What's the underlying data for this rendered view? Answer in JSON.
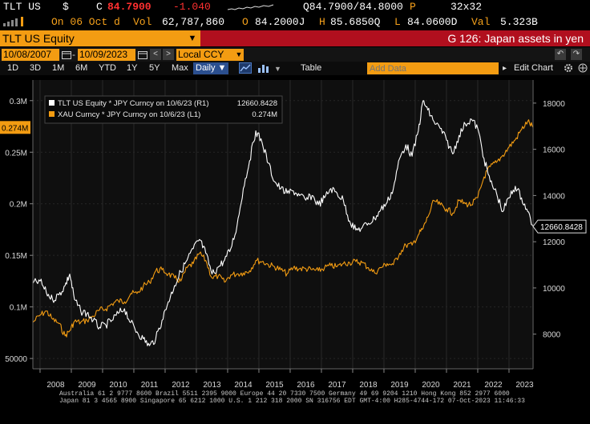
{
  "quote": {
    "ticker": "TLT US",
    "currency_symbol": "$",
    "last_prefix": "C",
    "last": "84.7900",
    "change": "-1.040",
    "bid_ask": "Q84.7900/84.8000",
    "bid_ask_suffix": "P",
    "size": "32x32",
    "date_label": "On 06 Oct d",
    "volume_label": "Vol",
    "volume": "62,787,860",
    "open_label": "O",
    "open": "84.2000J",
    "high_label": "H",
    "high": "85.6850Q",
    "low_label": "L",
    "low": "84.0600D",
    "value_label": "Val",
    "value": "5.323B"
  },
  "security": {
    "name": "TLT US Equity",
    "function_title": "G 126: Japan assets in yen"
  },
  "toolbar": {
    "start_date": "10/08/2007",
    "end_date": "10/09/2023",
    "currency": "Local CCY",
    "table_label": "Table",
    "add_data_placeholder": "Add Data",
    "edit_chart_label": "Edit Chart",
    "periods": [
      "1D",
      "3D",
      "1M",
      "6M",
      "YTD",
      "1Y",
      "5Y",
      "Max"
    ],
    "frequency": "Daily"
  },
  "footer": {
    "line1": "Australia 61 2 9777 8600 Brazil 5511 2395 9000 Europe 44 20 7330 7500 Germany 49 69 9204 1210 Hong Kong 852 2977 6000",
    "line2": "Japan 81 3 4565 8900 Singapore 65 6212 1000 U.S. 1 212 318 2000 SN 316756 EDT GMT-4:00 H285-4744-172 07-Oct-2023 11:46:33"
  },
  "chart_data": {
    "type": "line",
    "x_range": [
      "2007-10-08",
      "2023-10-06"
    ],
    "x_tick_labels": [
      "2008",
      "2009",
      "2010",
      "2011",
      "2012",
      "2013",
      "2014",
      "2015",
      "2016",
      "2017",
      "2018",
      "2019",
      "2020",
      "2021",
      "2022",
      "2023"
    ],
    "left_axis": {
      "ticks": [
        50000,
        100000,
        150000,
        200000,
        250000,
        300000
      ],
      "tick_labels": [
        "50000",
        "0.1M",
        "0.15M",
        "0.2M",
        "0.25M",
        "0.3M"
      ],
      "range": [
        40000,
        320000
      ]
    },
    "right_axis": {
      "ticks": [
        8000,
        10000,
        12000,
        14000,
        16000,
        18000
      ],
      "tick_labels": [
        "8000",
        "10000",
        "12000",
        "14000",
        "16000",
        "18000"
      ],
      "range": [
        6500,
        19000
      ]
    },
    "legend_position": "top-left",
    "series": [
      {
        "name": "TLT US Equity * JPY Curncy on 10/6/23 (R1)",
        "last_label": "12660.8428",
        "axis": "right",
        "color": "#ffffff",
        "points": [
          [
            2007.77,
            10200
          ],
          [
            2008.0,
            10300
          ],
          [
            2008.2,
            9800
          ],
          [
            2008.4,
            9500
          ],
          [
            2008.6,
            9700
          ],
          [
            2008.8,
            10100
          ],
          [
            2008.95,
            10600
          ],
          [
            2009.1,
            9500
          ],
          [
            2009.3,
            9000
          ],
          [
            2009.5,
            8900
          ],
          [
            2009.7,
            8600
          ],
          [
            2009.9,
            8300
          ],
          [
            2010.1,
            8400
          ],
          [
            2010.3,
            8600
          ],
          [
            2010.5,
            8900
          ],
          [
            2010.7,
            9100
          ],
          [
            2010.9,
            8500
          ],
          [
            2011.1,
            8100
          ],
          [
            2011.3,
            7800
          ],
          [
            2011.5,
            7500
          ],
          [
            2011.7,
            7800
          ],
          [
            2011.9,
            8600
          ],
          [
            2012.1,
            9400
          ],
          [
            2012.3,
            10100
          ],
          [
            2012.5,
            10700
          ],
          [
            2012.7,
            11200
          ],
          [
            2012.9,
            11700
          ],
          [
            2013.1,
            12100
          ],
          [
            2013.3,
            11500
          ],
          [
            2013.5,
            10600
          ],
          [
            2013.7,
            10900
          ],
          [
            2013.9,
            11200
          ],
          [
            2014.1,
            11700
          ],
          [
            2014.3,
            12700
          ],
          [
            2014.5,
            14300
          ],
          [
            2014.7,
            15500
          ],
          [
            2014.9,
            16800
          ],
          [
            2015.1,
            16300
          ],
          [
            2015.3,
            15400
          ],
          [
            2015.5,
            14600
          ],
          [
            2015.7,
            14300
          ],
          [
            2015.9,
            14100
          ],
          [
            2016.1,
            14200
          ],
          [
            2016.3,
            14000
          ],
          [
            2016.5,
            13800
          ],
          [
            2016.7,
            14000
          ],
          [
            2016.9,
            13600
          ],
          [
            2017.1,
            13900
          ],
          [
            2017.3,
            14300
          ],
          [
            2017.5,
            14100
          ],
          [
            2017.7,
            13800
          ],
          [
            2017.9,
            12900
          ],
          [
            2018.1,
            12500
          ],
          [
            2018.3,
            12600
          ],
          [
            2018.5,
            12800
          ],
          [
            2018.7,
            13000
          ],
          [
            2018.9,
            13400
          ],
          [
            2019.1,
            13700
          ],
          [
            2019.3,
            14300
          ],
          [
            2019.5,
            15600
          ],
          [
            2019.7,
            16200
          ],
          [
            2019.9,
            15700
          ],
          [
            2020.1,
            16800
          ],
          [
            2020.25,
            18100
          ],
          [
            2020.4,
            17700
          ],
          [
            2020.6,
            17200
          ],
          [
            2020.8,
            16900
          ],
          [
            2021.0,
            16400
          ],
          [
            2021.2,
            15800
          ],
          [
            2021.4,
            16600
          ],
          [
            2021.6,
            17100
          ],
          [
            2021.8,
            17300
          ],
          [
            2022.0,
            16900
          ],
          [
            2022.2,
            15600
          ],
          [
            2022.4,
            14600
          ],
          [
            2022.6,
            14100
          ],
          [
            2022.8,
            13300
          ],
          [
            2023.0,
            13900
          ],
          [
            2023.2,
            14400
          ],
          [
            2023.4,
            13900
          ],
          [
            2023.6,
            13300
          ],
          [
            2023.77,
            12660.8428
          ]
        ]
      },
      {
        "name": "XAU Curncy * JPY Curncy on 10/6/23 (L1)",
        "last_label": "0.274M",
        "axis": "left",
        "color": "#f39c12",
        "points": [
          [
            2007.77,
            85000
          ],
          [
            2008.0,
            92000
          ],
          [
            2008.2,
            96000
          ],
          [
            2008.4,
            88000
          ],
          [
            2008.6,
            84000
          ],
          [
            2008.8,
            72000
          ],
          [
            2008.95,
            77000
          ],
          [
            2009.1,
            86000
          ],
          [
            2009.3,
            85000
          ],
          [
            2009.5,
            87000
          ],
          [
            2009.7,
            91000
          ],
          [
            2009.9,
            97000
          ],
          [
            2010.1,
            98000
          ],
          [
            2010.3,
            103000
          ],
          [
            2010.5,
            106000
          ],
          [
            2010.7,
            105000
          ],
          [
            2010.9,
            113000
          ],
          [
            2011.1,
            113000
          ],
          [
            2011.3,
            120000
          ],
          [
            2011.5,
            124000
          ],
          [
            2011.7,
            135000
          ],
          [
            2011.9,
            136000
          ],
          [
            2012.1,
            132000
          ],
          [
            2012.3,
            128000
          ],
          [
            2012.5,
            125000
          ],
          [
            2012.7,
            138000
          ],
          [
            2012.9,
            142000
          ],
          [
            2013.1,
            152000
          ],
          [
            2013.3,
            145000
          ],
          [
            2013.5,
            128000
          ],
          [
            2013.7,
            130000
          ],
          [
            2013.9,
            124000
          ],
          [
            2014.1,
            131000
          ],
          [
            2014.3,
            132000
          ],
          [
            2014.5,
            133000
          ],
          [
            2014.7,
            135000
          ],
          [
            2014.9,
            145000
          ],
          [
            2015.1,
            144000
          ],
          [
            2015.3,
            141000
          ],
          [
            2015.5,
            139000
          ],
          [
            2015.7,
            136000
          ],
          [
            2015.9,
            132000
          ],
          [
            2016.1,
            138000
          ],
          [
            2016.3,
            137000
          ],
          [
            2016.5,
            137000
          ],
          [
            2016.7,
            136000
          ],
          [
            2016.9,
            135000
          ],
          [
            2017.1,
            138000
          ],
          [
            2017.3,
            140000
          ],
          [
            2017.5,
            139000
          ],
          [
            2017.7,
            142000
          ],
          [
            2017.9,
            143000
          ],
          [
            2018.1,
            144000
          ],
          [
            2018.3,
            143000
          ],
          [
            2018.5,
            138000
          ],
          [
            2018.7,
            133000
          ],
          [
            2018.9,
            138000
          ],
          [
            2019.1,
            142000
          ],
          [
            2019.3,
            141000
          ],
          [
            2019.5,
            152000
          ],
          [
            2019.7,
            160000
          ],
          [
            2019.9,
            160000
          ],
          [
            2020.1,
            170000
          ],
          [
            2020.25,
            176000
          ],
          [
            2020.4,
            187000
          ],
          [
            2020.6,
            203000
          ],
          [
            2020.8,
            199000
          ],
          [
            2021.0,
            195000
          ],
          [
            2021.2,
            191000
          ],
          [
            2021.4,
            203000
          ],
          [
            2021.6,
            200000
          ],
          [
            2021.8,
            199000
          ],
          [
            2022.0,
            206000
          ],
          [
            2022.2,
            226000
          ],
          [
            2022.4,
            236000
          ],
          [
            2022.6,
            240000
          ],
          [
            2022.8,
            247000
          ],
          [
            2023.0,
            255000
          ],
          [
            2023.2,
            262000
          ],
          [
            2023.4,
            272000
          ],
          [
            2023.6,
            280000
          ],
          [
            2023.77,
            274000
          ]
        ]
      }
    ]
  }
}
